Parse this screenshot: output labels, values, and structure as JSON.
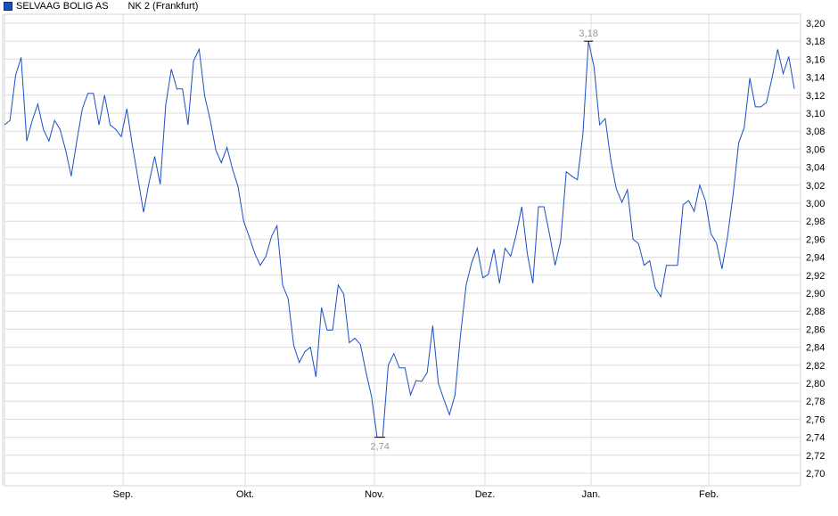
{
  "legend": {
    "name": "SELVAAG BOLIG AS",
    "exchange": "NK 2 (Frankfurt)",
    "color": "#1a4fc4"
  },
  "chart_data": {
    "type": "line",
    "title": "",
    "xlabel": "",
    "ylabel": "",
    "ylim": [
      2.7,
      3.2
    ],
    "y_ticks": [
      "2,70",
      "2,72",
      "2,74",
      "2,76",
      "2,78",
      "2,80",
      "2,82",
      "2,84",
      "2,86",
      "2,88",
      "2,90",
      "2,92",
      "2,94",
      "2,96",
      "2,98",
      "3,00",
      "3,02",
      "3,04",
      "3,06",
      "3,08",
      "3,10",
      "3,12",
      "3,14",
      "3,16",
      "3,18",
      "3,20"
    ],
    "x_ticks": [
      "Sep.",
      "Okt.",
      "Nov.",
      "Dez.",
      "Jan.",
      "Feb."
    ],
    "grid": true,
    "line_color": "#1a4fc4",
    "annotations": {
      "high": {
        "label": "3,18",
        "value": 3.18
      },
      "low": {
        "label": "2,74",
        "value": 2.74
      }
    },
    "values": [
      3.087,
      3.092,
      3.142,
      3.162,
      3.069,
      3.092,
      3.11,
      3.082,
      3.069,
      3.092,
      3.082,
      3.059,
      3.03,
      3.069,
      3.105,
      3.122,
      3.122,
      3.087,
      3.12,
      3.087,
      3.082,
      3.074,
      3.105,
      3.064,
      3.028,
      2.99,
      3.023,
      3.052,
      3.021,
      3.109,
      3.149,
      3.127,
      3.127,
      3.087,
      3.158,
      3.171,
      3.119,
      3.092,
      3.059,
      3.045,
      3.062,
      3.038,
      3.018,
      2.98,
      2.963,
      2.944,
      2.931,
      2.941,
      2.963,
      2.975,
      2.909,
      2.894,
      2.842,
      2.823,
      2.835,
      2.84,
      2.807,
      2.884,
      2.859,
      2.859,
      2.909,
      2.899,
      2.845,
      2.85,
      2.843,
      2.812,
      2.785,
      2.74,
      2.74,
      2.82,
      2.833,
      2.817,
      2.817,
      2.787,
      2.803,
      2.802,
      2.812,
      2.864,
      2.8,
      2.782,
      2.765,
      2.787,
      2.854,
      2.909,
      2.934,
      2.95,
      2.917,
      2.921,
      2.949,
      2.911,
      2.95,
      2.941,
      2.965,
      2.996,
      2.944,
      2.911,
      2.996,
      2.996,
      2.965,
      2.931,
      2.958,
      3.035,
      3.03,
      3.026,
      3.077,
      3.18,
      3.151,
      3.087,
      3.094,
      3.048,
      3.016,
      3.001,
      3.015,
      2.96,
      2.955,
      2.931,
      2.936,
      2.906,
      2.896,
      2.931,
      2.931,
      2.931,
      2.998,
      3.003,
      2.991,
      3.02,
      3.003,
      2.966,
      2.956,
      2.927,
      2.963,
      3.01,
      3.067,
      3.084,
      3.139,
      3.107,
      3.107,
      3.112,
      3.139,
      3.171,
      3.144,
      3.163,
      3.127
    ]
  }
}
